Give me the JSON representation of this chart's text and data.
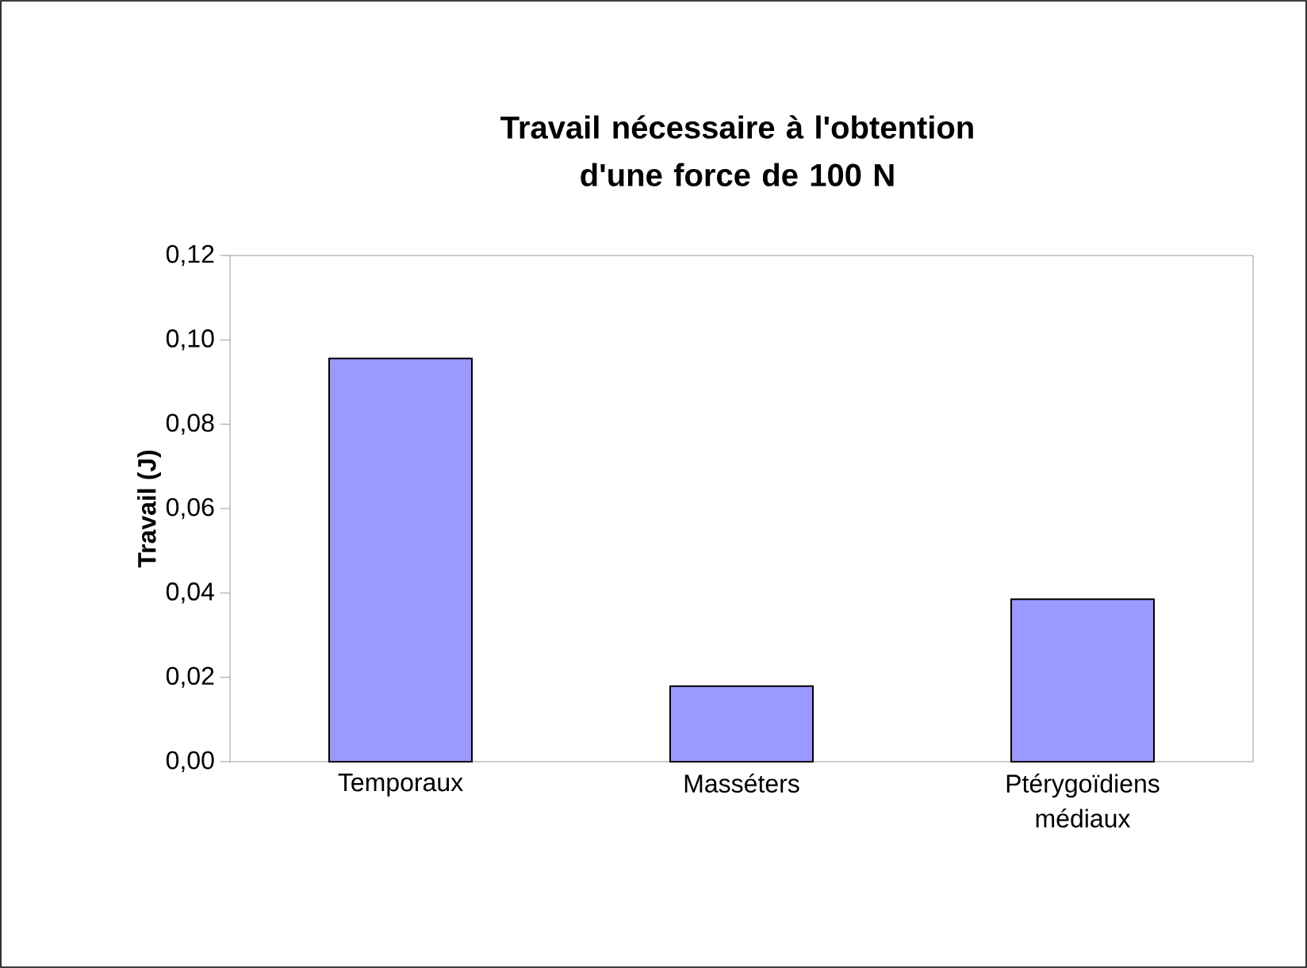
{
  "chart_data": {
    "type": "bar",
    "title": "Travail nécessaire à l'obtention d'une force de 100 N",
    "ylabel": "Travail (J)",
    "categories": [
      "Temporaux",
      "Masséters",
      "Ptérygoïdiens médiaux"
    ],
    "values": [
      0.0956,
      0.0179,
      0.0385
    ],
    "color": "#9999ff",
    "ylim": [
      0,
      0.12
    ],
    "yticks": [
      {
        "value": 0,
        "label": "0,00"
      },
      {
        "value": 0.02,
        "label": "0,02"
      },
      {
        "value": 0.04,
        "label": "0,04"
      },
      {
        "value": 0.06,
        "label": "0,06"
      },
      {
        "value": 0.08,
        "label": "0,08"
      },
      {
        "value": 0.1,
        "label": "0,10"
      },
      {
        "value": 0.12,
        "label": "0,12"
      }
    ],
    "grid": false
  }
}
